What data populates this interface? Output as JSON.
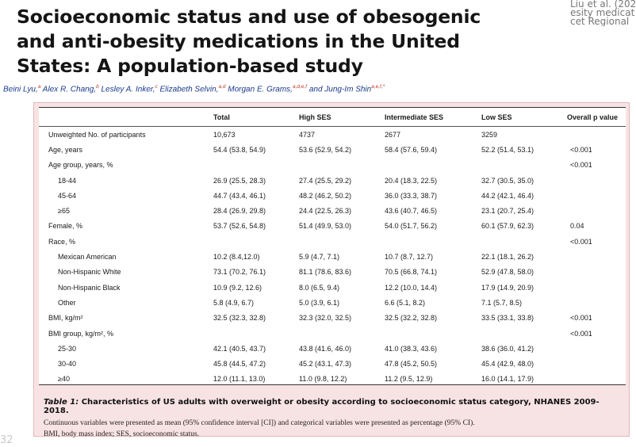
{
  "paper": {
    "title": "Socioeconomic status and use of obesogenic and anti-obesity medications in the United States: A population-based study",
    "citation": "Liu et al. (202\nesity medicat\ncet Regional",
    "authors": [
      {
        "name": "Beini Lyu,",
        "aff": "a"
      },
      {
        "name": "Alex R. Chang,",
        "aff": "b"
      },
      {
        "name": "Lesley A. Inker,",
        "aff": "c"
      },
      {
        "name": "Elizabeth Selvin,",
        "aff": "a,d"
      },
      {
        "name": "Morgan E. Grams,",
        "aff": "a,d,e,f"
      },
      {
        "name": "and Jung-Im Shin",
        "aff": "a,e,f,*"
      }
    ],
    "page_number": "32"
  },
  "table": {
    "headers": [
      "",
      "Total",
      "High SES",
      "Intermediate SES",
      "Low SES",
      "Overall p value"
    ],
    "rows": [
      {
        "label": "Unweighted No. of participants",
        "indent": false,
        "cells": [
          "10,673",
          "4737",
          "2677",
          "3259",
          ""
        ]
      },
      {
        "label": "Age, years",
        "indent": false,
        "cells": [
          "54.4 (53.8, 54.9)",
          "53.6 (52.9, 54.2)",
          "58.4 (57.6, 59.4)",
          "52.2 (51.4, 53.1)",
          "<0.001"
        ]
      },
      {
        "label": "Age group, years, %",
        "indent": false,
        "cells": [
          "",
          "",
          "",
          "",
          "<0.001"
        ]
      },
      {
        "label": "18-44",
        "indent": true,
        "cells": [
          "26.9 (25.5, 28.3)",
          "27.4 (25.5, 29.2)",
          "20.4 (18.3, 22.5)",
          "32.7 (30.5, 35.0)",
          ""
        ]
      },
      {
        "label": "45-64",
        "indent": true,
        "cells": [
          "44.7 (43.4, 46.1)",
          "48.2 (46.2, 50.2)",
          "36.0 (33.3, 38.7)",
          "44.2 (42.1, 46.4)",
          ""
        ]
      },
      {
        "label": "≥65",
        "indent": true,
        "cells": [
          "28.4 (26.9, 29.8)",
          "24.4 (22.5, 26.3)",
          "43.6 (40.7, 46.5)",
          "23.1 (20.7, 25.4)",
          ""
        ]
      },
      {
        "label": "Female, %",
        "indent": false,
        "cells": [
          "53.7 (52.6, 54.8)",
          "51.4 (49.9, 53.0)",
          "54.0 (51.7, 56.2)",
          "60.1 (57.9, 62.3)",
          "0.04"
        ]
      },
      {
        "label": "Race, %",
        "indent": false,
        "cells": [
          "",
          "",
          "",
          "",
          "<0.001"
        ]
      },
      {
        "label": "Mexican American",
        "indent": true,
        "cells": [
          "10.2 (8.4,12.0)",
          "5.9 (4.7, 7.1)",
          "10.7 (8.7, 12.7)",
          "22.1 (18.1, 26.2)",
          ""
        ]
      },
      {
        "label": "Non-Hispanic White",
        "indent": true,
        "cells": [
          "73.1 (70.2, 76.1)",
          "81.1 (78.6, 83.6)",
          "70.5 (66.8, 74.1)",
          "52.9 (47.8, 58.0)",
          ""
        ]
      },
      {
        "label": "Non-Hispanic Black",
        "indent": true,
        "cells": [
          "10.9 (9.2, 12.6)",
          "8.0 (6.5, 9.4)",
          "12.2 (10.0, 14.4)",
          "17.9 (14.9, 20.9)",
          ""
        ]
      },
      {
        "label": "Other",
        "indent": true,
        "cells": [
          "5.8 (4.9, 6.7)",
          "5.0 (3.9, 6.1)",
          "6.6 (5.1, 8.2)",
          "7.1 (5.7, 8.5)",
          ""
        ]
      },
      {
        "label": "BMI, kg/m²",
        "indent": false,
        "cells": [
          "32.5 (32.3, 32.8)",
          "32.3 (32.0, 32.5)",
          "32.5 (32.2, 32.8)",
          "33.5 (33.1, 33.8)",
          "<0.001"
        ]
      },
      {
        "label": "BMI group, kg/m², %",
        "indent": false,
        "cells": [
          "",
          "",
          "",
          "",
          "<0.001"
        ]
      },
      {
        "label": "25-30",
        "indent": true,
        "cells": [
          "42.1 (40.5, 43.7)",
          "43.8 (41.6, 46.0)",
          "41.0 (38.3, 43.6)",
          "38.6 (36.0, 41.2)",
          ""
        ]
      },
      {
        "label": "30-40",
        "indent": true,
        "cells": [
          "45.8 (44.5, 47.2)",
          "45.2 (43.1, 47.3)",
          "47.8 (45.2, 50.5)",
          "45.4 (42.9, 48.0)",
          ""
        ]
      },
      {
        "label": "≥40",
        "indent": true,
        "cells": [
          "12.0 (11.1, 13.0)",
          "11.0 (9.8, 12.2)",
          "11.2 (9.5, 12.9)",
          "16.0 (14.1, 17.9)",
          ""
        ]
      }
    ]
  },
  "caption": {
    "label": "Table 1:",
    "title": "Characteristics of US adults with overweight or obesity according to socioeconomic status category, NHANES 2009-2018.",
    "note1": "Continuous variables were presented as mean (95% confidence interval [CI]) and categorical variables were presented as percentage (95% CI).",
    "note2": "BMI, body mass index; SES, socioeconomic status."
  }
}
